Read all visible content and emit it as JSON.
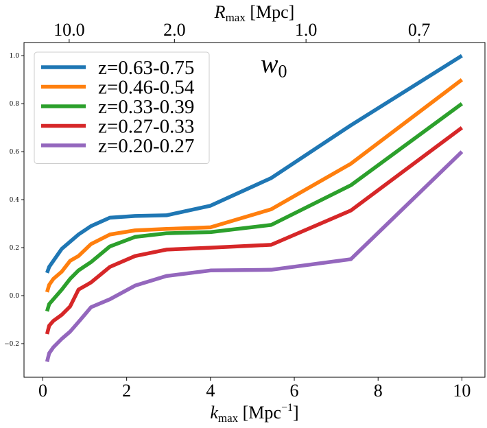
{
  "chart_data": {
    "type": "line",
    "title": "",
    "annotation": {
      "main": "w",
      "sub": "0"
    },
    "xlabel": {
      "main": "k",
      "sub": "max",
      "rest": " [Mpc",
      "sup": "−1",
      "end": "]"
    },
    "top_xlabel": {
      "main": "R",
      "sub": "max",
      "rest": " [Mpc]"
    },
    "xlim": [
      -0.45,
      10.55
    ],
    "ylim": [
      -0.34,
      1.055
    ],
    "x_ticks": [
      0,
      2,
      4,
      6,
      8,
      10
    ],
    "y_ticks": [
      -0.2,
      0.0,
      0.2,
      0.4,
      0.6,
      0.8,
      1.0
    ],
    "y_tick_labels": [
      "−0.2",
      "0.0",
      "0.2",
      "0.4",
      "0.6",
      "0.8",
      "1.0"
    ],
    "top_ticks": [
      {
        "label": "10.0",
        "k": 0.628
      },
      {
        "label": "2.0",
        "k": 3.14
      },
      {
        "label": "1.0",
        "k": 6.28
      },
      {
        "label": "0.7",
        "k": 8.98
      }
    ],
    "legend_position": "top-left",
    "grid": false,
    "series": [
      {
        "name": "z=0.63-0.75",
        "color": "#1f77b4",
        "points": [
          [
            0.1,
            0.095
          ],
          [
            0.15,
            0.12
          ],
          [
            0.25,
            0.145
          ],
          [
            0.45,
            0.195
          ],
          [
            0.65,
            0.225
          ],
          [
            0.85,
            0.255
          ],
          [
            1.15,
            0.29
          ],
          [
            1.6,
            0.325
          ],
          [
            2.2,
            0.332
          ],
          [
            2.95,
            0.335
          ],
          [
            4.0,
            0.375
          ],
          [
            5.45,
            0.49
          ],
          [
            7.35,
            0.71
          ],
          [
            10.0,
            1.0
          ]
        ]
      },
      {
        "name": "z=0.46-0.54",
        "color": "#ff7f0e",
        "points": [
          [
            0.1,
            0.015
          ],
          [
            0.15,
            0.045
          ],
          [
            0.25,
            0.07
          ],
          [
            0.45,
            0.1
          ],
          [
            0.65,
            0.145
          ],
          [
            0.85,
            0.165
          ],
          [
            1.15,
            0.215
          ],
          [
            1.6,
            0.255
          ],
          [
            2.2,
            0.272
          ],
          [
            2.95,
            0.278
          ],
          [
            4.0,
            0.285
          ],
          [
            5.45,
            0.36
          ],
          [
            7.35,
            0.55
          ],
          [
            10.0,
            0.9
          ]
        ]
      },
      {
        "name": "z=0.33-0.39",
        "color": "#2ca02c",
        "points": [
          [
            0.1,
            -0.065
          ],
          [
            0.15,
            -0.035
          ],
          [
            0.25,
            -0.015
          ],
          [
            0.45,
            0.025
          ],
          [
            0.65,
            0.07
          ],
          [
            0.85,
            0.105
          ],
          [
            1.15,
            0.14
          ],
          [
            1.6,
            0.205
          ],
          [
            2.2,
            0.245
          ],
          [
            2.95,
            0.26
          ],
          [
            4.0,
            0.265
          ],
          [
            5.45,
            0.295
          ],
          [
            7.35,
            0.46
          ],
          [
            10.0,
            0.8
          ]
        ]
      },
      {
        "name": "z=0.27-0.33",
        "color": "#d62728",
        "points": [
          [
            0.1,
            -0.16
          ],
          [
            0.15,
            -0.125
          ],
          [
            0.25,
            -0.105
          ],
          [
            0.45,
            -0.08
          ],
          [
            0.65,
            -0.045
          ],
          [
            0.85,
            0.025
          ],
          [
            1.15,
            0.055
          ],
          [
            1.6,
            0.12
          ],
          [
            2.2,
            0.165
          ],
          [
            2.95,
            0.192
          ],
          [
            4.0,
            0.2
          ],
          [
            5.45,
            0.212
          ],
          [
            7.35,
            0.355
          ],
          [
            10.0,
            0.7
          ]
        ]
      },
      {
        "name": "z=0.20-0.27",
        "color": "#9467bd",
        "points": [
          [
            0.1,
            -0.275
          ],
          [
            0.15,
            -0.24
          ],
          [
            0.25,
            -0.215
          ],
          [
            0.45,
            -0.18
          ],
          [
            0.65,
            -0.15
          ],
          [
            0.85,
            -0.11
          ],
          [
            1.15,
            -0.048
          ],
          [
            1.6,
            -0.015
          ],
          [
            2.2,
            0.042
          ],
          [
            2.95,
            0.082
          ],
          [
            4.0,
            0.105
          ],
          [
            5.45,
            0.108
          ],
          [
            7.35,
            0.152
          ],
          [
            10.0,
            0.6
          ]
        ]
      }
    ]
  }
}
